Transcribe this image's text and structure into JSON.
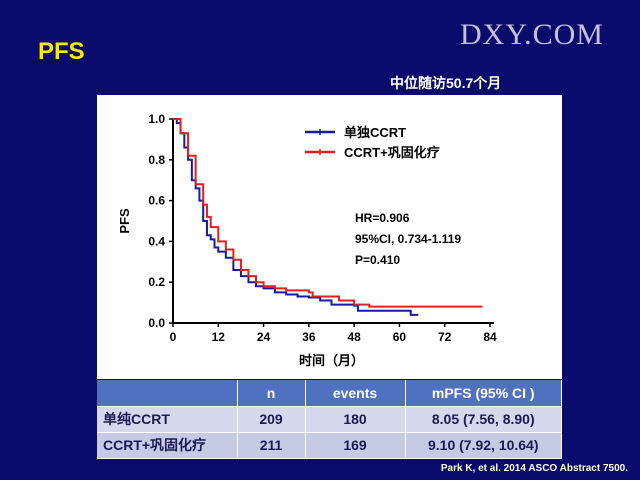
{
  "slide": {
    "title": "PFS",
    "subtitle": "中位随访50.7个月",
    "citation": "Park K, et al. 2014 ASCO Abstract 7500.",
    "watermark": "DXY.COM"
  },
  "chart_data": {
    "type": "line",
    "subtype": "kaplan-meier step",
    "xlabel": "时间（月）",
    "ylabel": "PFS",
    "xlim": [
      0,
      84
    ],
    "ylim": [
      0,
      1.0
    ],
    "xticks": [
      "0",
      "12",
      "24",
      "36",
      "48",
      "60",
      "72",
      "84"
    ],
    "yticks": [
      "0.0",
      "0.2",
      "0.4",
      "0.6",
      "0.8",
      "1.0"
    ],
    "legend_position": "top-right",
    "annotations": [
      "HR=0.906",
      "95%CI, 0.734-1.119",
      "P=0.410"
    ],
    "series": [
      {
        "name": "单独CCRT",
        "color": "#1a1aa0",
        "x": [
          0,
          1,
          2,
          3,
          4,
          5,
          6,
          7,
          8,
          9,
          10,
          11,
          12,
          14,
          16,
          18,
          20,
          22,
          24,
          27,
          30,
          33,
          36,
          39,
          42,
          48,
          49,
          63,
          65
        ],
        "y": [
          1,
          0.98,
          0.93,
          0.86,
          0.8,
          0.7,
          0.66,
          0.6,
          0.5,
          0.43,
          0.41,
          0.37,
          0.35,
          0.32,
          0.26,
          0.23,
          0.2,
          0.18,
          0.17,
          0.15,
          0.14,
          0.13,
          0.125,
          0.11,
          0.09,
          0.085,
          0.06,
          0.04,
          0.04
        ]
      },
      {
        "name": "CCRT+巩固化疗",
        "color": "#e02020",
        "x": [
          0,
          2,
          4,
          6,
          8,
          9,
          10,
          12,
          14,
          16,
          18,
          20,
          22,
          24,
          27,
          30,
          36,
          37,
          42,
          44,
          48,
          52,
          82
        ],
        "y": [
          1,
          0.93,
          0.82,
          0.68,
          0.58,
          0.52,
          0.47,
          0.4,
          0.36,
          0.31,
          0.26,
          0.23,
          0.2,
          0.18,
          0.17,
          0.16,
          0.15,
          0.13,
          0.13,
          0.11,
          0.09,
          0.08,
          0.08
        ]
      }
    ]
  },
  "table": {
    "headers": [
      "",
      "n",
      "events",
      "mPFS (95% CI )"
    ],
    "rows": [
      [
        "单纯CCRT",
        "209",
        "180",
        "8.05 (7.56, 8.90)"
      ],
      [
        "CCRT+巩固化疗",
        "211",
        "169",
        "9.10 (7.92, 10.64)"
      ]
    ]
  }
}
